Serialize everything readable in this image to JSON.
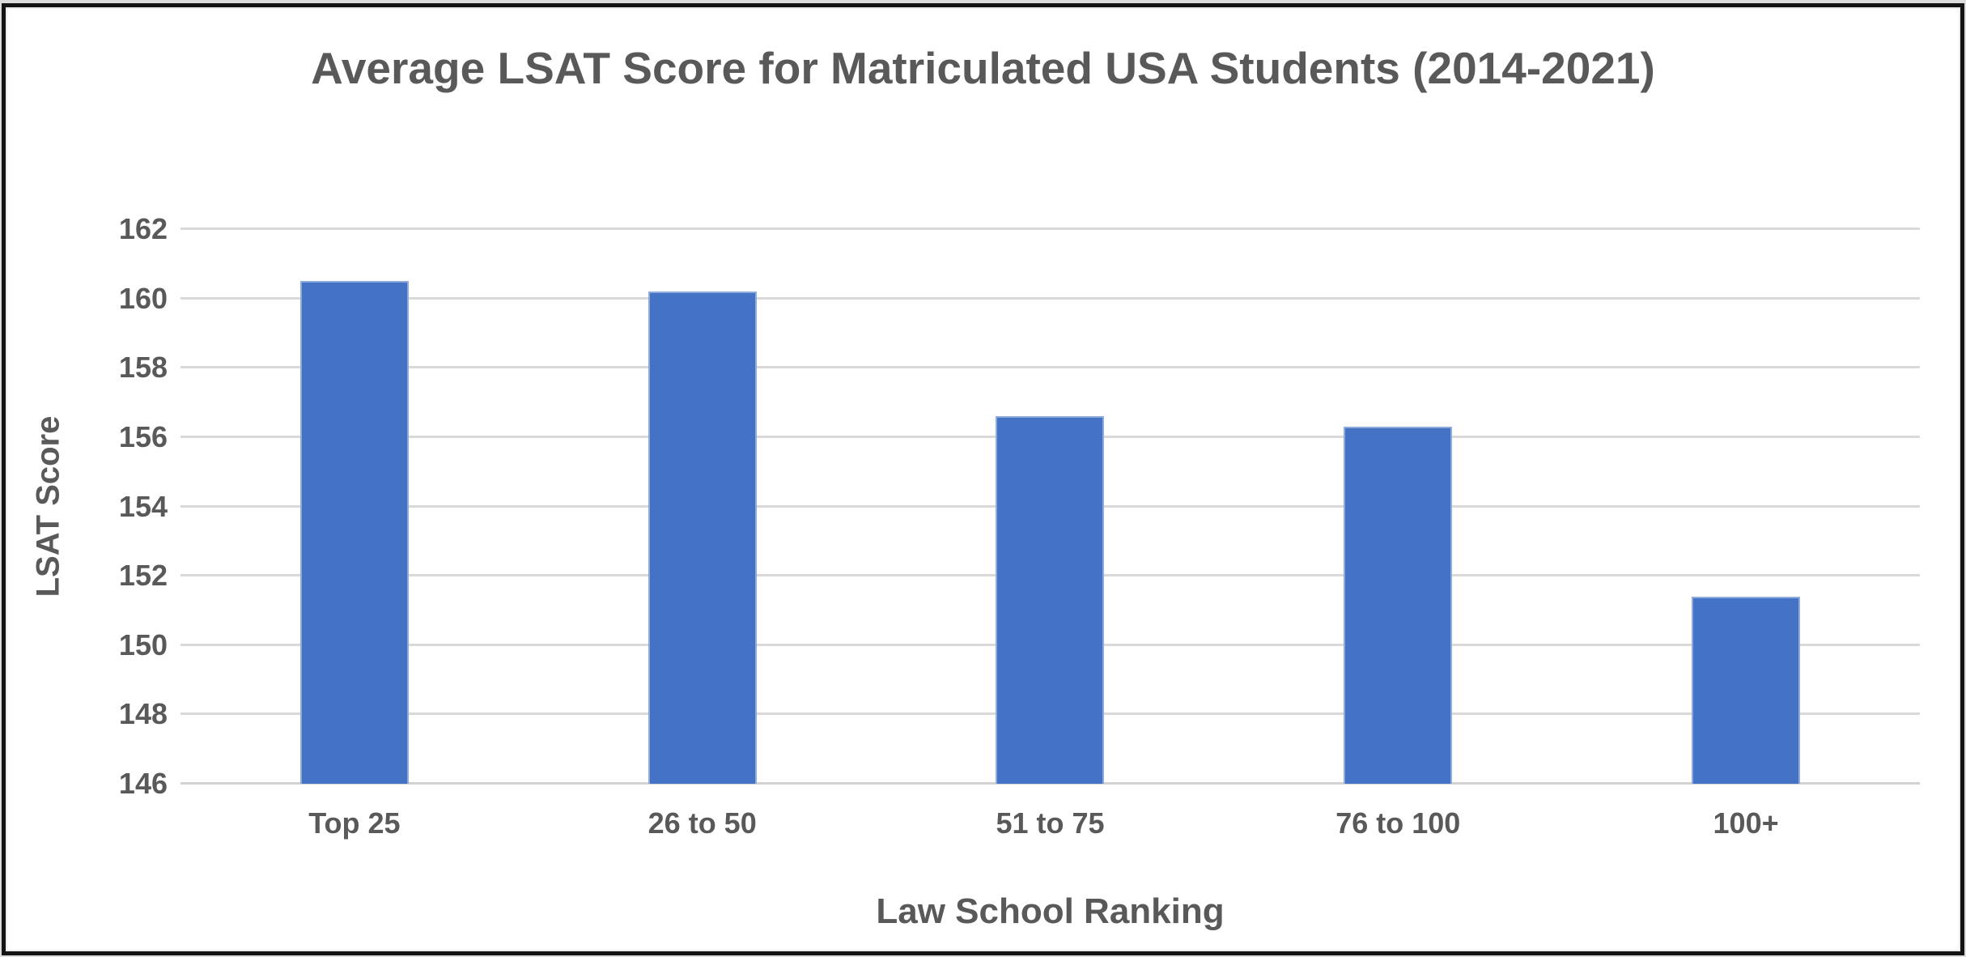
{
  "chart_data": {
    "type": "bar",
    "title": "Average LSAT Score for Matriculated USA Students (2014-2021)",
    "xlabel": "Law School Ranking",
    "ylabel": "LSAT Score",
    "categories": [
      "Top 25",
      "26 to 50",
      "51 to 75",
      "76 to 100",
      "100+"
    ],
    "values": [
      160.5,
      160.2,
      156.6,
      156.3,
      151.4
    ],
    "ylim": [
      146,
      162
    ],
    "y_ticks": [
      162,
      160,
      158,
      156,
      154,
      152,
      150,
      148,
      146
    ],
    "grid": true,
    "legend_position": "none",
    "bar_color": "#4472C4",
    "bar_edge_color": "#8FAADC",
    "text_color": "#595959",
    "gridline_color": "#D9D9D9",
    "axis_line_color": "#D2D2D2",
    "frame_color": "#141414"
  }
}
